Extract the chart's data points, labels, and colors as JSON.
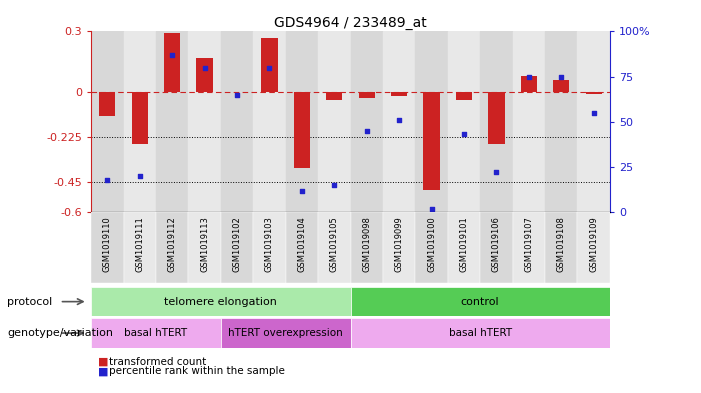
{
  "title": "GDS4964 / 233489_at",
  "samples": [
    "GSM1019110",
    "GSM1019111",
    "GSM1019112",
    "GSM1019113",
    "GSM1019102",
    "GSM1019103",
    "GSM1019104",
    "GSM1019105",
    "GSM1019098",
    "GSM1019099",
    "GSM1019100",
    "GSM1019101",
    "GSM1019106",
    "GSM1019107",
    "GSM1019108",
    "GSM1019109"
  ],
  "transformed_count": [
    -0.12,
    -0.26,
    0.29,
    0.17,
    0.0,
    0.265,
    -0.38,
    -0.04,
    -0.03,
    -0.02,
    -0.49,
    -0.04,
    -0.26,
    0.08,
    0.06,
    -0.01
  ],
  "percentile_rank": [
    18,
    20,
    87,
    80,
    65,
    80,
    12,
    15,
    45,
    51,
    2,
    43,
    22,
    75,
    75,
    55
  ],
  "ylim_left": [
    -0.6,
    0.3
  ],
  "ylim_right": [
    0,
    100
  ],
  "yticks_left": [
    -0.6,
    -0.45,
    -0.225,
    0.0,
    0.3
  ],
  "yticks_right": [
    0,
    25,
    50,
    75,
    100
  ],
  "ytick_labels_left": [
    "-0.6",
    "-0.45",
    "-0.225",
    "0",
    "0.3"
  ],
  "ytick_labels_right": [
    "0",
    "25",
    "50",
    "75",
    "100%"
  ],
  "hline_y": 0,
  "dotted_lines": [
    -0.225,
    -0.45
  ],
  "bar_color": "#cc2222",
  "dot_color": "#2222cc",
  "bar_width": 0.5,
  "protocol_groups": [
    {
      "label": "telomere elongation",
      "start": 0,
      "end": 7,
      "color": "#aaeaaa"
    },
    {
      "label": "control",
      "start": 8,
      "end": 15,
      "color": "#55cc55"
    }
  ],
  "genotype_groups": [
    {
      "label": "basal hTERT",
      "start": 0,
      "end": 3,
      "color": "#eeaaee"
    },
    {
      "label": "hTERT overexpression",
      "start": 4,
      "end": 7,
      "color": "#cc66cc"
    },
    {
      "label": "basal hTERT",
      "start": 8,
      "end": 15,
      "color": "#eeaaee"
    }
  ],
  "legend_items": [
    {
      "label": "transformed count",
      "color": "#cc2222"
    },
    {
      "label": "percentile rank within the sample",
      "color": "#2222cc"
    }
  ],
  "protocol_label": "protocol",
  "genotype_label": "genotype/variation",
  "background_color": "#ffffff",
  "sample_bg_even": "#d8d8d8",
  "sample_bg_odd": "#e8e8e8"
}
